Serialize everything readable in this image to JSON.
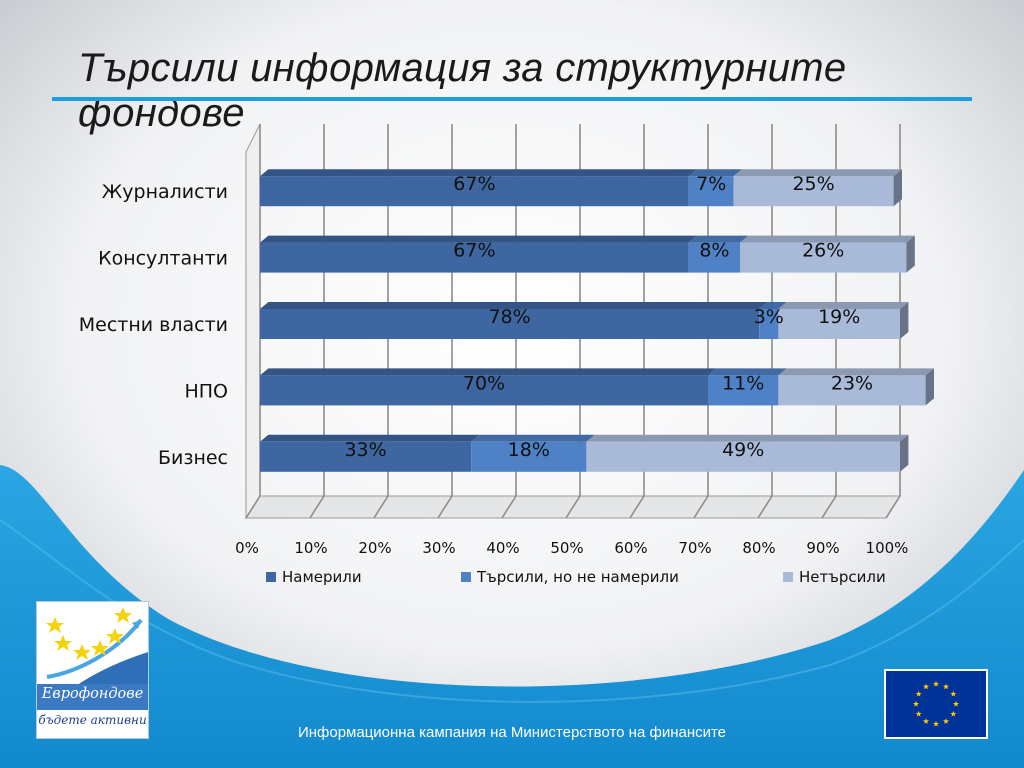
{
  "slide": {
    "title": "Търсили информация за структурните фондове",
    "footer": "Информационна кампания на Министерството на финансите",
    "logo": {
      "name": "Еврофондове",
      "slogan": "бъдете активни"
    }
  },
  "colors": {
    "series": [
      "#3e67a1",
      "#4f81c7",
      "#a9bad9"
    ],
    "accent": "#1aa0e0"
  },
  "chart_data": {
    "type": "bar",
    "orientation": "horizontal",
    "stacked": true,
    "style": "3d",
    "categories": [
      "Журналисти",
      "Консултанти",
      "Местни власти",
      "НПО",
      "Бизнес"
    ],
    "series": [
      {
        "name": "Намерили",
        "values": [
          67,
          67,
          78,
          70,
          33
        ],
        "labels": [
          "67%",
          "67%",
          "78%",
          "70%",
          "33%"
        ]
      },
      {
        "name": "Търсили, но не намерили",
        "values": [
          7,
          8,
          3,
          11,
          18
        ],
        "labels": [
          "7%",
          "8%",
          "3%",
          "11%",
          "18%"
        ]
      },
      {
        "name": "Нетърсили",
        "values": [
          25,
          26,
          19,
          23,
          49
        ],
        "labels": [
          "25%",
          "26%",
          "19%",
          "23%",
          "49%"
        ]
      }
    ],
    "x_ticks": [
      "0%",
      "10%",
      "20%",
      "30%",
      "40%",
      "50%",
      "60%",
      "70%",
      "80%",
      "90%",
      "100%"
    ],
    "xlim": [
      0,
      100
    ],
    "grid": true,
    "legend": "bottom"
  }
}
